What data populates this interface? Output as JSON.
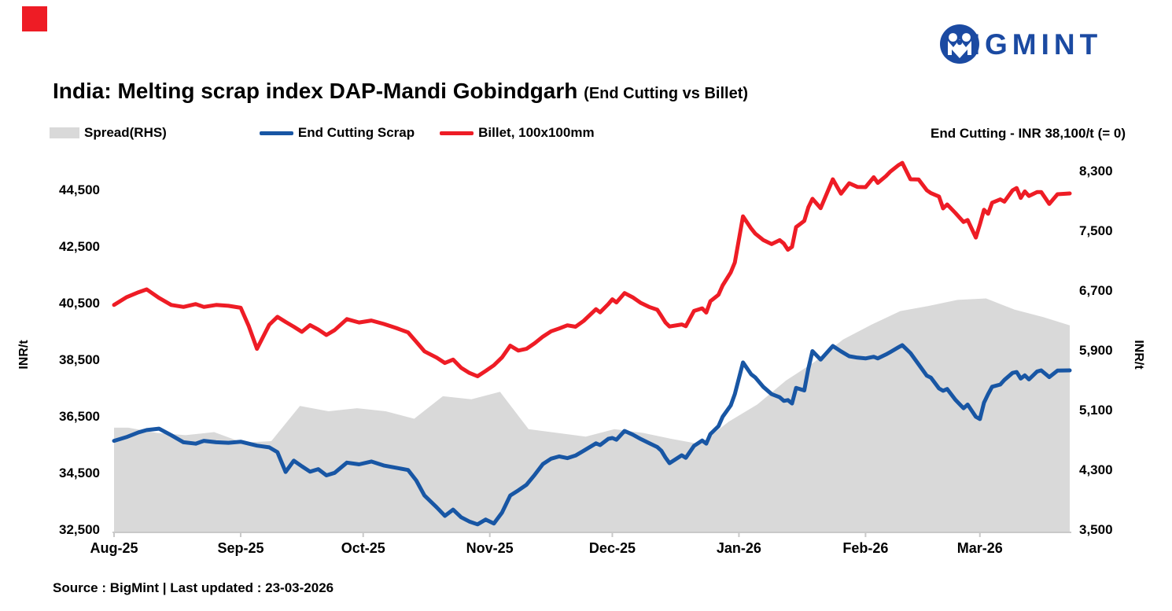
{
  "header": {
    "logo_text": "BIGMINT"
  },
  "title": {
    "main": "India: Melting scrap index DAP-Mandi Gobindgarh",
    "suffix": "(End Cutting vs Billet)"
  },
  "legend": {
    "items": [
      {
        "label": "Spread(RHS)",
        "type": "area",
        "color": "#D9D9D9"
      },
      {
        "label": "End Cutting Scrap",
        "type": "line",
        "color": "#1856A4"
      },
      {
        "label": "Billet, 100x100mm",
        "type": "line",
        "color": "#EE1C25"
      }
    ]
  },
  "note": "End Cutting - INR 38,100/t (= 0)",
  "source": "Source : BigMint | Last updated : 23-03-2026",
  "colors": {
    "scrap_line": "#1856A4",
    "billet_line": "#EE1C25",
    "spread_area": "#D9D9D9",
    "logo_blue": "#1B4AA2",
    "accent_red": "#EE1C25",
    "axis_gray": "#C9C9C9"
  },
  "chart_data": {
    "type": "line",
    "title": "India: Melting scrap index DAP-Mandi Gobindgarh (End Cutting vs Billet)",
    "x_axis": {
      "tick_labels": [
        "Aug-25",
        "Sep-25",
        "Oct-25",
        "Nov-25",
        "Dec-25",
        "Jan-26",
        "Feb-26",
        "Mar-26"
      ],
      "tick_days": [
        0,
        31,
        61,
        92,
        122,
        153,
        184,
        212
      ],
      "domain_days": [
        0,
        234
      ]
    },
    "y_left": {
      "label": "INR/t",
      "tick_labels": [
        "44,500",
        "42,500",
        "40,500",
        "38,500",
        "36,500",
        "34,500",
        "32,500"
      ],
      "tick_values": [
        44500,
        42500,
        40500,
        38500,
        36500,
        34500,
        32500
      ],
      "range": [
        32500,
        44500
      ]
    },
    "y_right": {
      "label": "INR/t",
      "tick_labels": [
        "8,300",
        "7,500",
        "6,700",
        "5,900",
        "5,100",
        "4,300",
        "3,500"
      ],
      "tick_values": [
        8300,
        7500,
        6700,
        5900,
        5100,
        4300,
        3500
      ],
      "range": [
        3500,
        8300
      ]
    },
    "series_names": [
      "End Cutting Scrap",
      "Billet, 100x100mm",
      "Spread(RHS)"
    ],
    "points_format": "[day since Aug-1-2025, End Cutting Scrap INR/t (LHS), Billet 100x100mm INR/t (LHS)]",
    "points": [
      [
        0,
        35650,
        40450
      ],
      [
        3,
        35780,
        40720
      ],
      [
        6,
        35950,
        40900
      ],
      [
        8,
        36030,
        41000
      ],
      [
        11,
        36080,
        40700
      ],
      [
        14,
        35850,
        40450
      ],
      [
        17,
        35600,
        40380
      ],
      [
        20,
        35550,
        40480
      ],
      [
        22,
        35650,
        40380
      ],
      [
        25,
        35600,
        40450
      ],
      [
        28,
        35580,
        40420
      ],
      [
        31,
        35620,
        40350
      ],
      [
        33,
        35550,
        39700
      ],
      [
        35,
        35480,
        38900
      ],
      [
        38,
        35420,
        39750
      ],
      [
        40,
        35250,
        40030
      ],
      [
        42,
        34550,
        39850
      ],
      [
        44,
        34950,
        39680
      ],
      [
        46,
        34750,
        39500
      ],
      [
        48,
        34560,
        39740
      ],
      [
        50,
        34650,
        39580
      ],
      [
        52,
        34430,
        39390
      ],
      [
        54,
        34520,
        39560
      ],
      [
        57,
        34880,
        39950
      ],
      [
        60,
        34820,
        39830
      ],
      [
        63,
        34920,
        39900
      ],
      [
        66,
        34780,
        39780
      ],
      [
        69,
        34700,
        39640
      ],
      [
        72,
        34620,
        39480
      ],
      [
        74,
        34250,
        39150
      ],
      [
        76,
        33720,
        38810
      ],
      [
        79,
        33300,
        38590
      ],
      [
        81,
        33000,
        38400
      ],
      [
        83,
        33220,
        38520
      ],
      [
        85,
        32950,
        38230
      ],
      [
        87,
        32800,
        38050
      ],
      [
        89,
        32700,
        37930
      ],
      [
        91,
        32870,
        38120
      ],
      [
        93,
        32730,
        38320
      ],
      [
        95,
        33120,
        38600
      ],
      [
        97,
        33720,
        39010
      ],
      [
        99,
        33900,
        38840
      ],
      [
        101,
        34100,
        38900
      ],
      [
        103,
        34450,
        39100
      ],
      [
        105,
        34830,
        39330
      ],
      [
        107,
        35020,
        39520
      ],
      [
        109,
        35100,
        39620
      ],
      [
        111,
        35040,
        39730
      ],
      [
        113,
        35130,
        39680
      ],
      [
        115,
        35300,
        39890
      ],
      [
        118,
        35560,
        40300
      ],
      [
        119,
        35500,
        40190
      ],
      [
        121,
        35720,
        40480
      ],
      [
        122,
        35750,
        40650
      ],
      [
        123,
        35690,
        40540
      ],
      [
        125,
        36000,
        40870
      ],
      [
        127,
        35870,
        40720
      ],
      [
        129,
        35710,
        40520
      ],
      [
        131,
        35570,
        40380
      ],
      [
        133,
        35430,
        40280
      ],
      [
        134,
        35300,
        40060
      ],
      [
        135,
        35060,
        39830
      ],
      [
        136,
        34860,
        39690
      ],
      [
        139,
        35140,
        39760
      ],
      [
        140,
        35050,
        39700
      ],
      [
        142,
        35470,
        40240
      ],
      [
        144,
        35660,
        40330
      ],
      [
        145,
        35550,
        40180
      ],
      [
        146,
        35890,
        40580
      ],
      [
        148,
        36170,
        40810
      ],
      [
        149,
        36500,
        41140
      ],
      [
        151,
        36900,
        41600
      ],
      [
        152,
        37300,
        41950
      ],
      [
        154,
        38420,
        43580
      ],
      [
        156,
        38000,
        43150
      ],
      [
        157,
        37890,
        42970
      ],
      [
        159,
        37550,
        42740
      ],
      [
        161,
        37300,
        42600
      ],
      [
        163,
        37190,
        42740
      ],
      [
        164,
        37060,
        42620
      ],
      [
        165,
        37090,
        42400
      ],
      [
        166,
        36970,
        42500
      ],
      [
        167,
        37520,
        43200
      ],
      [
        169,
        37430,
        43420
      ],
      [
        170,
        38200,
        43900
      ],
      [
        171,
        38820,
        44200
      ],
      [
        173,
        38520,
        43870
      ],
      [
        176,
        39000,
        44890
      ],
      [
        178,
        38810,
        44380
      ],
      [
        180,
        38640,
        44750
      ],
      [
        182,
        38590,
        44620
      ],
      [
        184,
        38560,
        44610
      ],
      [
        186,
        38620,
        44960
      ],
      [
        187,
        38560,
        44760
      ],
      [
        189,
        38700,
        45000
      ],
      [
        190,
        38780,
        45150
      ],
      [
        192,
        38950,
        45380
      ],
      [
        193,
        39030,
        45470
      ],
      [
        195,
        38750,
        44890
      ],
      [
        197,
        38350,
        44880
      ],
      [
        199,
        37950,
        44500
      ],
      [
        200,
        37880,
        44400
      ],
      [
        202,
        37500,
        44280
      ],
      [
        203,
        37420,
        43860
      ],
      [
        204,
        37480,
        44000
      ],
      [
        206,
        37100,
        43700
      ],
      [
        208,
        36800,
        43380
      ],
      [
        209,
        36930,
        43450
      ],
      [
        211,
        36500,
        42830
      ],
      [
        212,
        36420,
        43300
      ],
      [
        213,
        37000,
        43810
      ],
      [
        214,
        37300,
        43670
      ],
      [
        215,
        37560,
        44060
      ],
      [
        217,
        37640,
        44180
      ],
      [
        218,
        37800,
        44100
      ],
      [
        220,
        38050,
        44500
      ],
      [
        221,
        38080,
        44580
      ],
      [
        222,
        37850,
        44230
      ],
      [
        223,
        37960,
        44460
      ],
      [
        224,
        37820,
        44300
      ],
      [
        226,
        38100,
        44440
      ],
      [
        227,
        38140,
        44440
      ],
      [
        229,
        37900,
        44020
      ],
      [
        231,
        38130,
        44360
      ],
      [
        234,
        38140,
        44390
      ]
    ],
    "spread_weekly_format": "[day, Spread INR/t (RHS) = Billet - End Cutting, weekly]",
    "spread_weekly": [
      [
        0,
        4870
      ],
      [
        3.5,
        4870
      ],
      [
        10.5,
        4800
      ],
      [
        17.5,
        4770
      ],
      [
        24.5,
        4810
      ],
      [
        31.5,
        4670
      ],
      [
        38.5,
        4690
      ],
      [
        45.5,
        5160
      ],
      [
        52.5,
        5090
      ],
      [
        59.5,
        5130
      ],
      [
        66.5,
        5090
      ],
      [
        73.5,
        4990
      ],
      [
        80.5,
        5290
      ],
      [
        87.5,
        5250
      ],
      [
        94.5,
        5350
      ],
      [
        101.5,
        4850
      ],
      [
        108.5,
        4800
      ],
      [
        115.5,
        4750
      ],
      [
        122.5,
        4850
      ],
      [
        129.5,
        4800
      ],
      [
        136.5,
        4720
      ],
      [
        143.5,
        4650
      ],
      [
        150.5,
        4950
      ],
      [
        157.5,
        5180
      ],
      [
        164.5,
        5500
      ],
      [
        171.5,
        5750
      ],
      [
        178.5,
        6050
      ],
      [
        185.5,
        6250
      ],
      [
        192.5,
        6430
      ],
      [
        199.5,
        6500
      ],
      [
        206.5,
        6580
      ],
      [
        213.5,
        6600
      ],
      [
        220.5,
        6450
      ],
      [
        227.5,
        6350
      ],
      [
        234,
        6240
      ]
    ],
    "legend_position": "top-left",
    "grid": false
  }
}
